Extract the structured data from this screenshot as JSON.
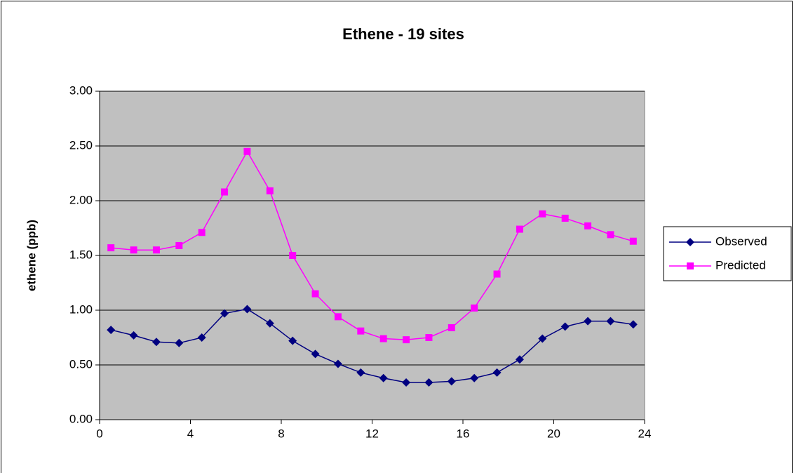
{
  "chart_data": {
    "type": "line",
    "title": "Ethene - 19 sites",
    "y_label": "ethene (ppb)",
    "x": [
      0.5,
      1.5,
      2.5,
      3.5,
      4.5,
      5.5,
      6.5,
      7.5,
      8.5,
      9.5,
      10.5,
      11.5,
      12.5,
      13.5,
      14.5,
      15.5,
      16.5,
      17.5,
      18.5,
      19.5,
      20.5,
      21.5,
      22.5,
      23.5
    ],
    "series": [
      {
        "name": "Observed",
        "color": "#000080",
        "marker": "diamond",
        "values": [
          0.82,
          0.77,
          0.71,
          0.7,
          0.75,
          0.97,
          1.01,
          0.88,
          0.72,
          0.6,
          0.51,
          0.43,
          0.38,
          0.34,
          0.34,
          0.35,
          0.38,
          0.43,
          0.55,
          0.74,
          0.85,
          0.9,
          0.9,
          0.87
        ]
      },
      {
        "name": "Predicted",
        "color": "#ff00ff",
        "marker": "square",
        "values": [
          1.57,
          1.55,
          1.55,
          1.59,
          1.71,
          2.08,
          2.45,
          2.09,
          1.5,
          1.15,
          0.94,
          0.81,
          0.74,
          0.73,
          0.75,
          0.84,
          1.02,
          1.33,
          1.74,
          1.88,
          1.84,
          1.77,
          1.69,
          1.63
        ]
      }
    ],
    "xlim": [
      0,
      24
    ],
    "xticks": [
      0,
      4,
      8,
      12,
      16,
      20,
      24
    ],
    "ylim": [
      0,
      3
    ],
    "yticks": [
      {
        "value": 0,
        "label": "0.00"
      },
      {
        "value": 0.5,
        "label": "0.50"
      },
      {
        "value": 1,
        "label": "1.00"
      },
      {
        "value": 1.5,
        "label": "1.50"
      },
      {
        "value": 2,
        "label": "2.00"
      },
      {
        "value": 2.5,
        "label": "2.50"
      },
      {
        "value": 3,
        "label": "3.00"
      }
    ],
    "grid": true,
    "legend": "right",
    "plot_background": "#c0c0c0"
  }
}
